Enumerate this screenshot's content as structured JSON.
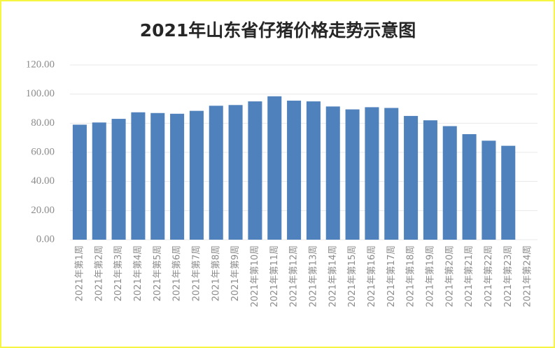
{
  "chart_data": {
    "type": "bar",
    "title": "2021年山东省仔猪价格走势示意图",
    "categories": [
      "2021年第1周",
      "2021年第2周",
      "2021年第3周",
      "2021年第4周",
      "2021年第5周",
      "2021年第6周",
      "2021年第7周",
      "2021年第8周",
      "2021年第9周",
      "2021年第10周",
      "2021年第11周",
      "2021年第12周",
      "2021年第13周",
      "2021年第14周",
      "2021年第15周",
      "2021年第16周",
      "2021年第17周",
      "2021年第18周",
      "2021年第19周",
      "2021年第20周",
      "2021年第21周",
      "2021年第22周",
      "2021年第23周",
      "2021年第24周"
    ],
    "values": [
      79,
      80.5,
      83,
      87.5,
      87,
      86.5,
      88.5,
      92,
      92.5,
      95,
      98.5,
      95.5,
      95,
      91.5,
      89.5,
      91,
      90.5,
      85,
      82,
      78,
      72.5,
      68,
      64.5,
      null
    ],
    "color": "#4f81bd",
    "ylim": [
      0,
      120
    ],
    "yticks": [
      {
        "value": 0,
        "label": "0.00"
      },
      {
        "value": 20,
        "label": "20.00"
      },
      {
        "value": 40,
        "label": "40.00"
      },
      {
        "value": 60,
        "label": "60.00"
      },
      {
        "value": 80,
        "label": "80.00"
      },
      {
        "value": 100,
        "label": "100.00"
      },
      {
        "value": 120,
        "label": "120.00"
      }
    ],
    "grid": true
  }
}
